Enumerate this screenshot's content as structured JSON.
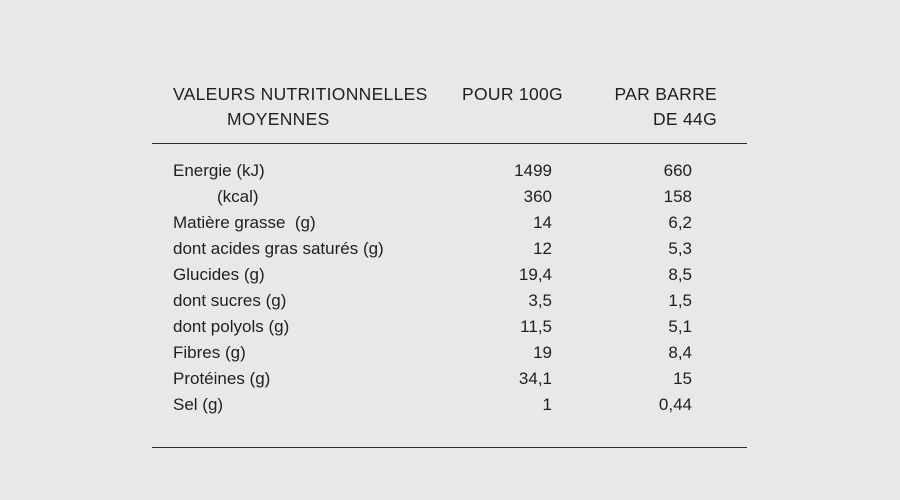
{
  "colors": {
    "background": "#e9e8e7",
    "text": "#1f1f1f",
    "rule": "#2b2b2b"
  },
  "header": {
    "col1_line1": "VALEURS NUTRITIONNELLES",
    "col1_line2": "MOYENNES",
    "col2": "POUR 100G",
    "col3_line1": "PAR BARRE",
    "col3_line2": "DE 44G"
  },
  "rows": [
    {
      "label": "Energie (kJ)",
      "per100": "1499",
      "bar": "660"
    },
    {
      "label": "(kcal)",
      "per100": "360",
      "bar": "158"
    },
    {
      "label": "Matière grasse  (g)",
      "per100": "14",
      "bar": "6,2"
    },
    {
      "label": "dont acides gras saturés (g)",
      "per100": "12",
      "bar": "5,3"
    },
    {
      "label": "Glucides (g)",
      "per100": "19,4",
      "bar": "8,5"
    },
    {
      "label": "dont sucres (g)",
      "per100": "3,5",
      "bar": "1,5"
    },
    {
      "label": "dont polyols (g)",
      "per100": "11,5",
      "bar": "5,1"
    },
    {
      "label": "Fibres (g)",
      "per100": "19",
      "bar": "8,4"
    },
    {
      "label": "Protéines (g)",
      "per100": "34,1",
      "bar": "15"
    },
    {
      "label": "Sel (g)",
      "per100": "1",
      "bar": "0,44"
    }
  ]
}
